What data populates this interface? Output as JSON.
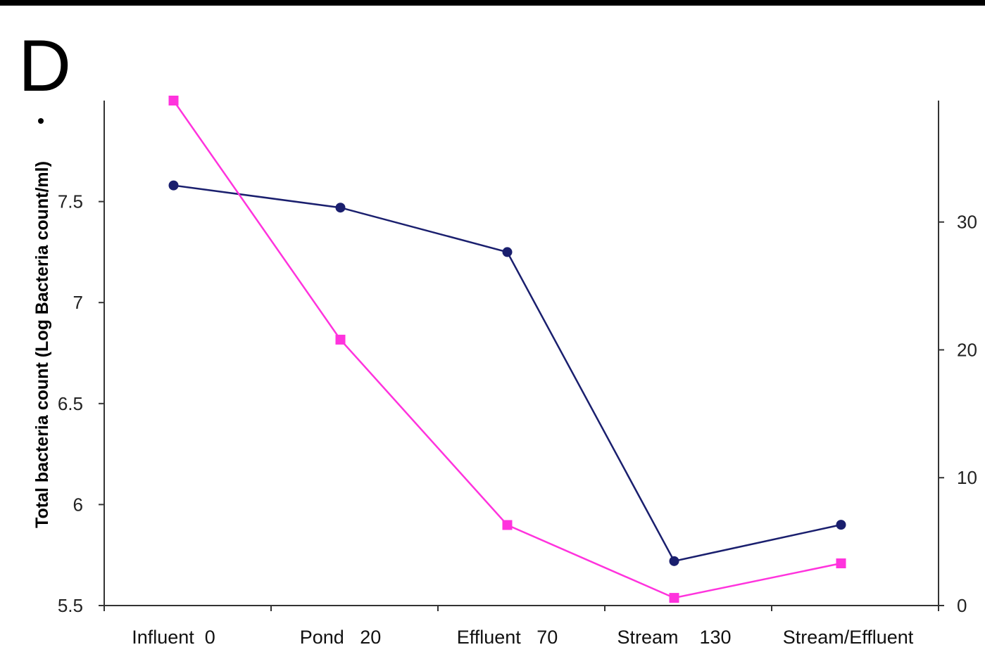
{
  "panel_label": "D",
  "chart_data": {
    "type": "line",
    "title": "",
    "ylabel": "Total bacteria count (Log Bacteria count/ml)",
    "y_left_ticks": [
      "5.5",
      "6",
      "6.5",
      "7",
      "7.5"
    ],
    "y_left_lim": [
      5.5,
      8.0
    ],
    "y_right_ticks": [
      "0",
      "10",
      "20",
      "30"
    ],
    "y_right_lim": [
      0,
      39.5
    ],
    "categories": [
      "Influent  0",
      "Pond   20",
      "Effluent   70",
      "Stream    130",
      "Stream/Effluent"
    ],
    "grid": false,
    "series": [
      {
        "axis": "left",
        "marker": "circle",
        "color": "#1a1f6e",
        "values": [
          7.58,
          7.47,
          7.25,
          5.72,
          5.9
        ]
      },
      {
        "axis": "right",
        "marker": "square",
        "color": "#ff33dd",
        "values": [
          39.5,
          20.8,
          6.3,
          0.6,
          3.3
        ]
      }
    ]
  }
}
